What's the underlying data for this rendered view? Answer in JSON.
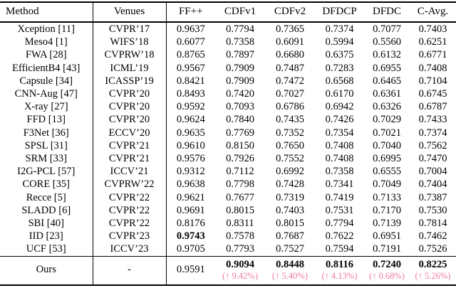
{
  "table": {
    "columns": [
      {
        "label": "Method"
      },
      {
        "label": "Venues"
      },
      {
        "label": "FF++"
      },
      {
        "label": "CDFv1"
      },
      {
        "label": "CDFv2"
      },
      {
        "label": "DFDCP"
      },
      {
        "label": "DFDC"
      },
      {
        "label": "C-Avg."
      }
    ],
    "rows": [
      {
        "method": "Xception [11]",
        "venue": "CVPR’17",
        "values": [
          "0.9637",
          "0.7794",
          "0.7365",
          "0.7374",
          "0.7077",
          "0.7403"
        ],
        "bold": []
      },
      {
        "method": "Meso4 [1]",
        "venue": "WIFS’18",
        "values": [
          "0.6077",
          "0.7358",
          "0.6091",
          "0.5994",
          "0.5560",
          "0.6251"
        ],
        "bold": []
      },
      {
        "method": "FWA [28]",
        "venue": "CVPRW’18",
        "values": [
          "0.8765",
          "0.7897",
          "0.6680",
          "0.6375",
          "0.6132",
          "0.6771"
        ],
        "bold": []
      },
      {
        "method": "EfficientB4 [43]",
        "venue": "ICML’19",
        "values": [
          "0.9567",
          "0.7909",
          "0.7487",
          "0.7283",
          "0.6955",
          "0.7408"
        ],
        "bold": []
      },
      {
        "method": "Capsule [34]",
        "venue": "ICASSP’19",
        "values": [
          "0.8421",
          "0.7909",
          "0.7472",
          "0.6568",
          "0.6465",
          "0.7104"
        ],
        "bold": []
      },
      {
        "method": "CNN-Aug [47]",
        "venue": "CVPR’20",
        "values": [
          "0.8493",
          "0.7420",
          "0.7027",
          "0.6170",
          "0.6361",
          "0.6745"
        ],
        "bold": []
      },
      {
        "method": "X-ray [27]",
        "venue": "CVPR’20",
        "values": [
          "0.9592",
          "0.7093",
          "0.6786",
          "0.6942",
          "0.6326",
          "0.6787"
        ],
        "bold": []
      },
      {
        "method": "FFD [13]",
        "venue": "CVPR’20",
        "values": [
          "0.9624",
          "0.7840",
          "0.7435",
          "0.7426",
          "0.7029",
          "0.7433"
        ],
        "bold": []
      },
      {
        "method": "F3Net [36]",
        "venue": "ECCV’20",
        "values": [
          "0.9635",
          "0.7769",
          "0.7352",
          "0.7354",
          "0.7021",
          "0.7374"
        ],
        "bold": []
      },
      {
        "method": "SPSL [31]",
        "venue": "CVPR’21",
        "values": [
          "0.9610",
          "0.8150",
          "0.7650",
          "0.7408",
          "0.7040",
          "0.7562"
        ],
        "bold": []
      },
      {
        "method": "SRM [33]",
        "venue": "CVPR’21",
        "values": [
          "0.9576",
          "0.7926",
          "0.7552",
          "0.7408",
          "0.6995",
          "0.7470"
        ],
        "bold": []
      },
      {
        "method": "I2G-PCL [57]",
        "venue": "ICCV’21",
        "values": [
          "0.9312",
          "0.7112",
          "0.6992",
          "0.7358",
          "0.6555",
          "0.7004"
        ],
        "bold": []
      },
      {
        "method": "CORE [35]",
        "venue": "CVPRW’22",
        "values": [
          "0.9638",
          "0.7798",
          "0.7428",
          "0.7341",
          "0.7049",
          "0.7404"
        ],
        "bold": []
      },
      {
        "method": "Recce [5]",
        "venue": "CVPR’22",
        "values": [
          "0.9621",
          "0.7677",
          "0.7319",
          "0.7419",
          "0.7133",
          "0.7387"
        ],
        "bold": []
      },
      {
        "method": "SLADD [6]",
        "venue": "CVPR’22",
        "values": [
          "0.9691",
          "0.8015",
          "0.7403",
          "0.7531",
          "0.7170",
          "0.7530"
        ],
        "bold": []
      },
      {
        "method": "SBI [40]",
        "venue": "CVPR’22",
        "values": [
          "0.8176",
          "0.8311",
          "0.8015",
          "0.7794",
          "0.7139",
          "0.7814"
        ],
        "bold": []
      },
      {
        "method": "IID [23]",
        "venue": "CVPR’23",
        "values": [
          "0.9743",
          "0.7578",
          "0.7687",
          "0.7622",
          "0.6951",
          "0.7462"
        ],
        "bold": [
          0
        ]
      },
      {
        "method": "UCF [53]",
        "venue": "ICCV’23",
        "values": [
          "0.9705",
          "0.7793",
          "0.7527",
          "0.7594",
          "0.7191",
          "0.7526"
        ],
        "bold": []
      }
    ],
    "ours_row": {
      "method": "Ours",
      "venue": "-",
      "ffpp": "0.9591",
      "results": [
        {
          "value": "0.9094",
          "gain": "(↑ 9.42%)"
        },
        {
          "value": "0.8448",
          "gain": "(↑ 5.40%)"
        },
        {
          "value": "0.8116",
          "gain": "(↑ 4.13%)"
        },
        {
          "value": "0.7240",
          "gain": "(↑ 0.68%)"
        },
        {
          "value": "0.8225",
          "gain": "(↑ 5.26%)"
        }
      ]
    },
    "colors": {
      "text": "#000000",
      "background": "#ffffff",
      "gain_pink": "#ed7a9d"
    }
  }
}
